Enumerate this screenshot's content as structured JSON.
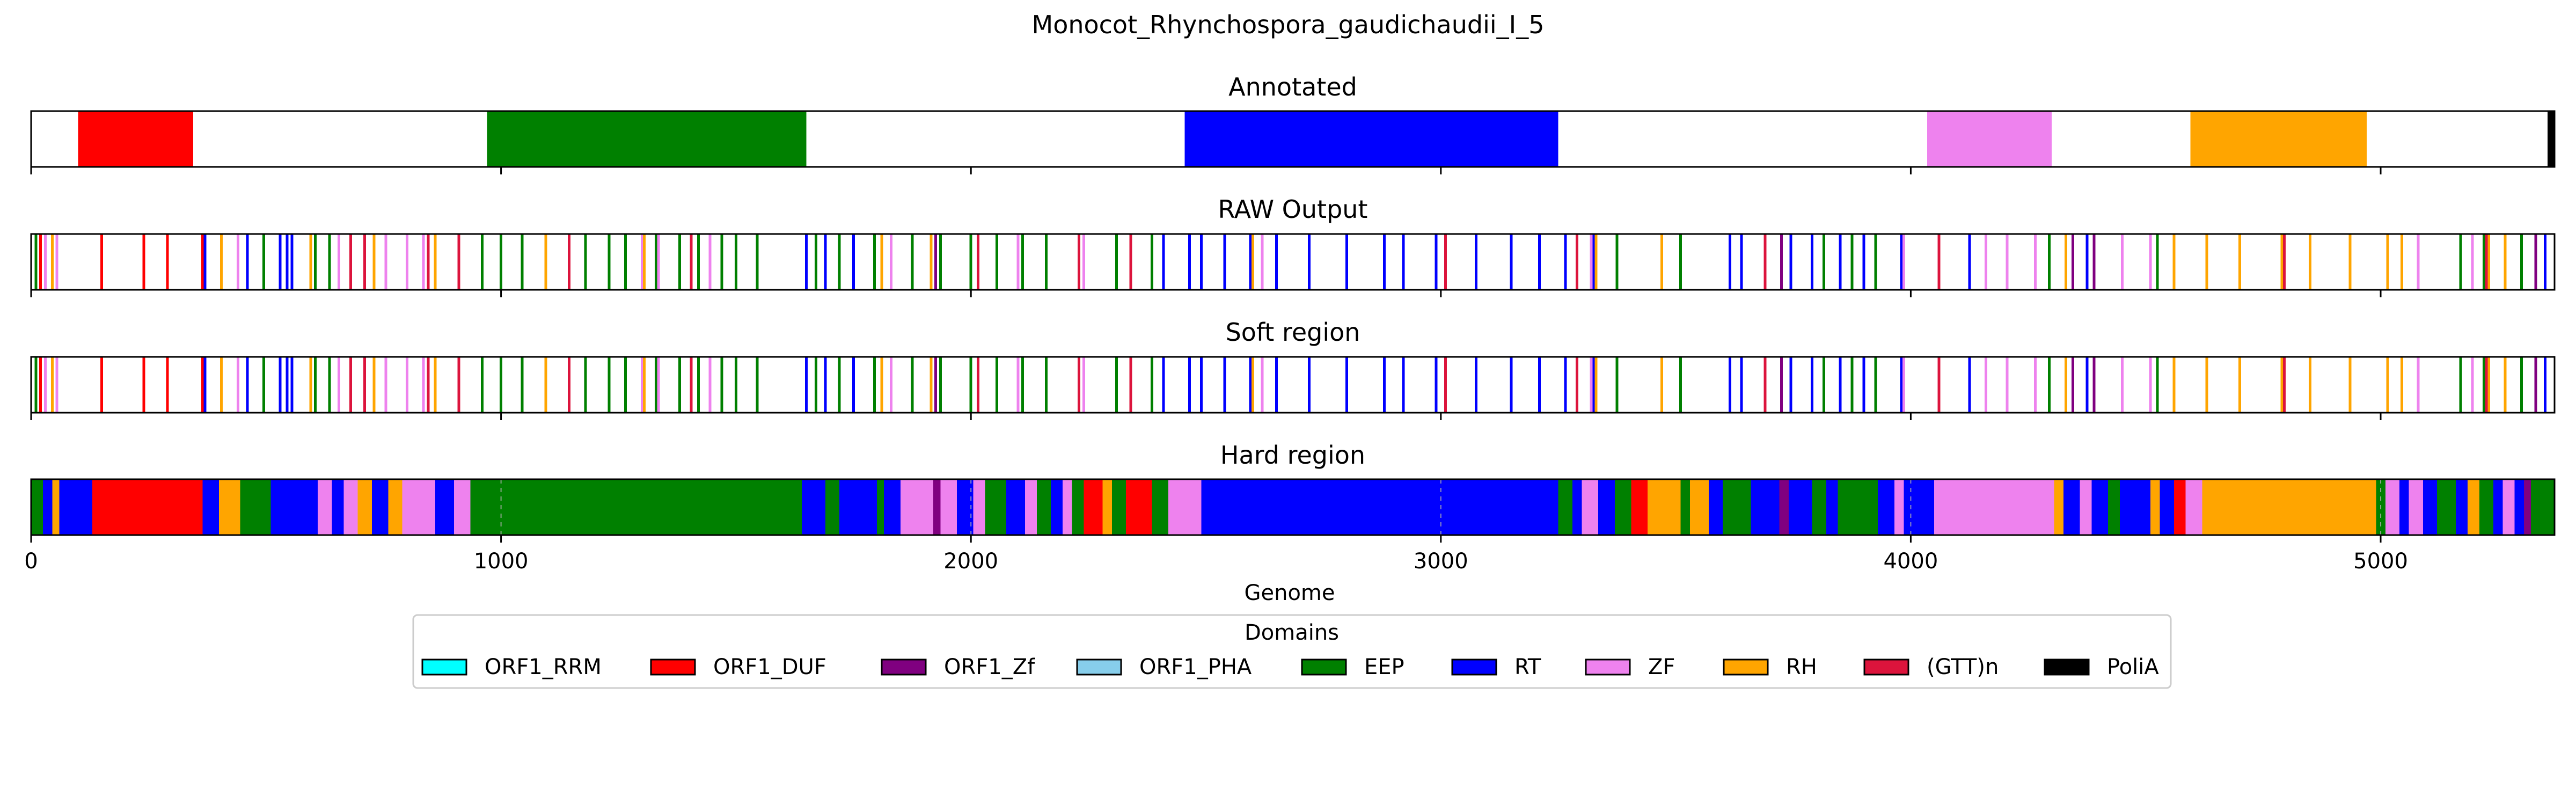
{
  "chart_data": {
    "type": "genome-track",
    "title": "Monocot_Rhynchospora_gaudichaudii_I_5",
    "xlabel": "Genome",
    "xlim": [
      0,
      5370
    ],
    "xticks": [
      0,
      1000,
      2000,
      3000,
      4000,
      5000
    ],
    "colors": {
      "ORF1_RRM": "#00ffff",
      "ORF1_DUF": "#ff0000",
      "ORF1_Zf": "#800080",
      "ORF1_PHA": "#87ceeb",
      "EEP": "#008000",
      "RT": "#0000ff",
      "ZF": "#ee82ee",
      "RH": "#ffa500",
      "(GTT)n": "#dc143c",
      "PoliA": "#000000"
    },
    "legend": {
      "title": "Domains",
      "placement": "bottom-center",
      "entries": [
        "ORF1_RRM",
        "ORF1_DUF",
        "ORF1_Zf",
        "ORF1_PHA",
        "EEP",
        "RT",
        "ZF",
        "RH",
        "(GTT)n",
        "PoliA"
      ]
    },
    "tracks": [
      {
        "title": "Annotated",
        "kind": "regions",
        "segments": [
          {
            "domain": "ORF1_DUF",
            "start": 100,
            "end": 345
          },
          {
            "domain": "EEP",
            "start": 970,
            "end": 1650
          },
          {
            "domain": "RT",
            "start": 2455,
            "end": 3250
          },
          {
            "domain": "ZF",
            "start": 4035,
            "end": 4300
          },
          {
            "domain": "RH",
            "start": 4595,
            "end": 4970
          },
          {
            "domain": "PoliA",
            "start": 5355,
            "end": 5370
          }
        ]
      },
      {
        "title": "RAW Output",
        "kind": "calls",
        "calls": [
          {
            "domain": "ORF1_DUF",
            "positions": [
              20,
              150,
              240,
              290,
              365
            ]
          },
          {
            "domain": "EEP",
            "positions": [
              10,
              440,
              495,
              605,
              635,
              960,
              1000,
              1045,
              1095,
              1145,
              1180,
              1230,
              1265,
              1330,
              1380,
              1420,
              1470,
              1500,
              1545,
              1670,
              1720,
              1795,
              1875,
              1935,
              2000,
              2055,
              2110,
              2160,
              2230,
              2310,
              2385,
              3375,
              3510,
              3815,
              3875,
              3925,
              4295,
              4525,
              5170,
              5220,
              5300
            ]
          },
          {
            "domain": "RT",
            "positions": [
              370,
              460,
              530,
              545,
              555,
              1650,
              1690,
              1750,
              2410,
              2465,
              2490,
              2540,
              2595,
              2650,
              2720,
              2800,
              2880,
              2920,
              2990,
              3075,
              3150,
              3210,
              3265,
              3325,
              3615,
              3640,
              3690,
              3745,
              3790,
              3850,
              3900,
              3980,
              4125,
              4345,
              4375,
              5350
            ]
          },
          {
            "domain": "ZF",
            "positions": [
              30,
              55,
              440,
              655,
              755,
              800,
              835,
              1300,
              1335,
              1445,
              1830,
              2100,
              2240,
              2620,
              3320,
              3985,
              4160,
              4205,
              4265,
              4450,
              4510,
              5080,
              5195
            ]
          },
          {
            "domain": "RH",
            "positions": [
              45,
              405,
              595,
              730,
              860,
              1095,
              1305,
              1810,
              1915,
              2600,
              3330,
              3470,
              4330,
              4560,
              4630,
              4700,
              4790,
              4850,
              4935,
              5015,
              5045,
              5230,
              5265
            ]
          },
          {
            "domain": "(GTT)n",
            "positions": [
              680,
              710,
              845,
              910,
              1145,
              1405,
              2015,
              2230,
              2340,
              3010,
              3290,
              3690,
              4060,
              4795,
              5225
            ]
          },
          {
            "domain": "ORF1_Zf",
            "positions": [
              1925,
              3725,
              4345,
              4390,
              5330
            ]
          }
        ]
      },
      {
        "title": "Soft region",
        "kind": "calls",
        "calls": [
          {
            "domain": "ORF1_DUF",
            "positions": [
              20,
              150,
              240,
              290,
              365
            ]
          },
          {
            "domain": "EEP",
            "positions": [
              10,
              440,
              495,
              605,
              635,
              960,
              1000,
              1045,
              1095,
              1145,
              1180,
              1230,
              1265,
              1330,
              1380,
              1420,
              1470,
              1500,
              1545,
              1670,
              1720,
              1795,
              1875,
              1935,
              2000,
              2055,
              2110,
              2160,
              2230,
              2310,
              2385,
              3375,
              3510,
              3815,
              3875,
              3925,
              4295,
              4525,
              5170,
              5220,
              5300
            ]
          },
          {
            "domain": "RT",
            "positions": [
              370,
              460,
              530,
              545,
              555,
              1650,
              1690,
              1750,
              2410,
              2465,
              2490,
              2540,
              2595,
              2650,
              2720,
              2800,
              2880,
              2920,
              2990,
              3075,
              3150,
              3210,
              3265,
              3325,
              3615,
              3640,
              3690,
              3745,
              3790,
              3850,
              3900,
              3980,
              4125,
              4345,
              4375,
              5350
            ]
          },
          {
            "domain": "ZF",
            "positions": [
              30,
              55,
              440,
              655,
              755,
              800,
              835,
              1300,
              1335,
              1445,
              1830,
              2100,
              2240,
              2620,
              3320,
              3985,
              4160,
              4205,
              4265,
              4450,
              4510,
              5080,
              5195
            ]
          },
          {
            "domain": "RH",
            "positions": [
              45,
              405,
              595,
              730,
              860,
              1095,
              1305,
              1810,
              1915,
              2600,
              3330,
              3470,
              4330,
              4560,
              4630,
              4700,
              4790,
              4850,
              4935,
              5015,
              5045,
              5230,
              5265
            ]
          },
          {
            "domain": "(GTT)n",
            "positions": [
              680,
              710,
              845,
              910,
              1145,
              1405,
              2015,
              2230,
              2340,
              3010,
              3290,
              3690,
              4060,
              4795,
              5225
            ]
          },
          {
            "domain": "ORF1_Zf",
            "positions": [
              1925,
              3725,
              4345,
              4390,
              5330
            ]
          }
        ]
      },
      {
        "title": "Hard region",
        "kind": "regions",
        "segments": [
          {
            "domain": "EEP",
            "start": 0,
            "end": 25
          },
          {
            "domain": "RT",
            "start": 25,
            "end": 45
          },
          {
            "domain": "RH",
            "start": 45,
            "end": 60
          },
          {
            "domain": "RT",
            "start": 60,
            "end": 130
          },
          {
            "domain": "ORF1_DUF",
            "start": 130,
            "end": 365
          },
          {
            "domain": "RT",
            "start": 365,
            "end": 400
          },
          {
            "domain": "RH",
            "start": 400,
            "end": 445
          },
          {
            "domain": "EEP",
            "start": 445,
            "end": 510
          },
          {
            "domain": "RT",
            "start": 510,
            "end": 610
          },
          {
            "domain": "ZF",
            "start": 610,
            "end": 640
          },
          {
            "domain": "RT",
            "start": 640,
            "end": 665
          },
          {
            "domain": "ZF",
            "start": 665,
            "end": 695
          },
          {
            "domain": "RH",
            "start": 695,
            "end": 725
          },
          {
            "domain": "RT",
            "start": 725,
            "end": 760
          },
          {
            "domain": "RH",
            "start": 760,
            "end": 790
          },
          {
            "domain": "ZF",
            "start": 790,
            "end": 860
          },
          {
            "domain": "RT",
            "start": 860,
            "end": 900
          },
          {
            "domain": "ZF",
            "start": 900,
            "end": 935
          },
          {
            "domain": "EEP",
            "start": 935,
            "end": 1640
          },
          {
            "domain": "RT",
            "start": 1640,
            "end": 1690
          },
          {
            "domain": "EEP",
            "start": 1690,
            "end": 1720
          },
          {
            "domain": "RT",
            "start": 1720,
            "end": 1800
          },
          {
            "domain": "EEP",
            "start": 1800,
            "end": 1815
          },
          {
            "domain": "RT",
            "start": 1815,
            "end": 1850
          },
          {
            "domain": "ZF",
            "start": 1850,
            "end": 1920
          },
          {
            "domain": "ORF1_Zf",
            "start": 1920,
            "end": 1935
          },
          {
            "domain": "ZF",
            "start": 1935,
            "end": 1970
          },
          {
            "domain": "RT",
            "start": 1970,
            "end": 2005
          },
          {
            "domain": "ZF",
            "start": 2005,
            "end": 2030
          },
          {
            "domain": "EEP",
            "start": 2030,
            "end": 2075
          },
          {
            "domain": "RT",
            "start": 2075,
            "end": 2115
          },
          {
            "domain": "ZF",
            "start": 2115,
            "end": 2140
          },
          {
            "domain": "EEP",
            "start": 2140,
            "end": 2170
          },
          {
            "domain": "RT",
            "start": 2170,
            "end": 2195
          },
          {
            "domain": "ZF",
            "start": 2195,
            "end": 2215
          },
          {
            "domain": "EEP",
            "start": 2215,
            "end": 2240
          },
          {
            "domain": "ORF1_DUF",
            "start": 2240,
            "end": 2280
          },
          {
            "domain": "RH",
            "start": 2280,
            "end": 2300
          },
          {
            "domain": "EEP",
            "start": 2300,
            "end": 2330
          },
          {
            "domain": "ORF1_DUF",
            "start": 2330,
            "end": 2385
          },
          {
            "domain": "EEP",
            "start": 2385,
            "end": 2420
          },
          {
            "domain": "ZF",
            "start": 2420,
            "end": 2490
          },
          {
            "domain": "RT",
            "start": 2490,
            "end": 3250
          },
          {
            "domain": "EEP",
            "start": 3250,
            "end": 3280
          },
          {
            "domain": "RT",
            "start": 3280,
            "end": 3300
          },
          {
            "domain": "ZF",
            "start": 3300,
            "end": 3335
          },
          {
            "domain": "RT",
            "start": 3335,
            "end": 3370
          },
          {
            "domain": "EEP",
            "start": 3370,
            "end": 3405
          },
          {
            "domain": "ORF1_DUF",
            "start": 3405,
            "end": 3440
          },
          {
            "domain": "RH",
            "start": 3440,
            "end": 3510
          },
          {
            "domain": "EEP",
            "start": 3510,
            "end": 3530
          },
          {
            "domain": "RH",
            "start": 3530,
            "end": 3570
          },
          {
            "domain": "RT",
            "start": 3570,
            "end": 3600
          },
          {
            "domain": "EEP",
            "start": 3600,
            "end": 3660
          },
          {
            "domain": "RT",
            "start": 3660,
            "end": 3720
          },
          {
            "domain": "ORF1_Zf",
            "start": 3720,
            "end": 3740
          },
          {
            "domain": "RT",
            "start": 3740,
            "end": 3790
          },
          {
            "domain": "EEP",
            "start": 3790,
            "end": 3820
          },
          {
            "domain": "RT",
            "start": 3820,
            "end": 3845
          },
          {
            "domain": "EEP",
            "start": 3845,
            "end": 3930
          },
          {
            "domain": "RT",
            "start": 3930,
            "end": 3965
          },
          {
            "domain": "ZF",
            "start": 3965,
            "end": 3985
          },
          {
            "domain": "RT",
            "start": 3985,
            "end": 4050
          },
          {
            "domain": "ZF",
            "start": 4050,
            "end": 4305
          },
          {
            "domain": "RH",
            "start": 4305,
            "end": 4325
          },
          {
            "domain": "RT",
            "start": 4325,
            "end": 4360
          },
          {
            "domain": "ZF",
            "start": 4360,
            "end": 4385
          },
          {
            "domain": "RT",
            "start": 4385,
            "end": 4420
          },
          {
            "domain": "EEP",
            "start": 4420,
            "end": 4445
          },
          {
            "domain": "RT",
            "start": 4445,
            "end": 4510
          },
          {
            "domain": "RH",
            "start": 4510,
            "end": 4530
          },
          {
            "domain": "RT",
            "start": 4530,
            "end": 4560
          },
          {
            "domain": "ORF1_DUF",
            "start": 4560,
            "end": 4585
          },
          {
            "domain": "ZF",
            "start": 4585,
            "end": 4620
          },
          {
            "domain": "RH",
            "start": 4620,
            "end": 4990
          },
          {
            "domain": "EEP",
            "start": 4990,
            "end": 5010
          },
          {
            "domain": "ZF",
            "start": 5010,
            "end": 5040
          },
          {
            "domain": "RT",
            "start": 5040,
            "end": 5060
          },
          {
            "domain": "ZF",
            "start": 5060,
            "end": 5090
          },
          {
            "domain": "RT",
            "start": 5090,
            "end": 5120
          },
          {
            "domain": "EEP",
            "start": 5120,
            "end": 5160
          },
          {
            "domain": "RT",
            "start": 5160,
            "end": 5185
          },
          {
            "domain": "RH",
            "start": 5185,
            "end": 5210
          },
          {
            "domain": "EEP",
            "start": 5210,
            "end": 5240
          },
          {
            "domain": "RT",
            "start": 5240,
            "end": 5260
          },
          {
            "domain": "ZF",
            "start": 5260,
            "end": 5285
          },
          {
            "domain": "RT",
            "start": 5285,
            "end": 5305
          },
          {
            "domain": "ORF1_Zf",
            "start": 5305,
            "end": 5320
          },
          {
            "domain": "EEP",
            "start": 5320,
            "end": 5370
          }
        ]
      }
    ]
  }
}
